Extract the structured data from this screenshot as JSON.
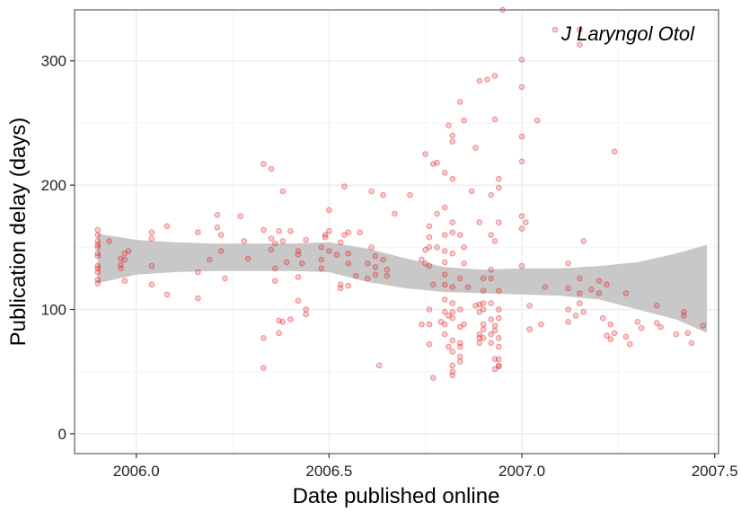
{
  "chart_data": {
    "type": "scatter",
    "title": "",
    "xlabel": "Date published online",
    "ylabel": "Publication delay (days)",
    "xlim": [
      2005.84,
      2007.51
    ],
    "ylim": [
      -16,
      341
    ],
    "x_ticks": [
      2006.0,
      2006.5,
      2007.0,
      2007.5
    ],
    "x_tick_labels": [
      "2006.0",
      "2006.5",
      "2007.0",
      "2007.5"
    ],
    "y_ticks": [
      0,
      100,
      200,
      300
    ],
    "y_tick_labels": [
      "0",
      "100",
      "200",
      "300"
    ],
    "grid": true,
    "legend_position": "top-right",
    "colors": {
      "points": "#e31a1c",
      "band": "#c8c8c8",
      "grid": "#ebebeb",
      "frame": "#7f7f7f"
    },
    "series": [
      {
        "name": "J Laryngol Otol",
        "type": "scatter",
        "points": [
          [
            2005.9,
            164
          ],
          [
            2005.9,
            160
          ],
          [
            2005.9,
            155
          ],
          [
            2005.9,
            152
          ],
          [
            2005.9,
            150
          ],
          [
            2005.9,
            145
          ],
          [
            2005.9,
            143
          ],
          [
            2005.9,
            135
          ],
          [
            2005.9,
            133
          ],
          [
            2005.9,
            130
          ],
          [
            2005.9,
            124
          ],
          [
            2005.9,
            121
          ],
          [
            2005.93,
            155
          ],
          [
            2005.96,
            141
          ],
          [
            2005.96,
            136
          ],
          [
            2005.96,
            133
          ],
          [
            2005.97,
            145
          ],
          [
            2005.97,
            140
          ],
          [
            2005.97,
            123
          ],
          [
            2005.98,
            147
          ],
          [
            2006.04,
            162
          ],
          [
            2006.04,
            157
          ],
          [
            2006.04,
            135
          ],
          [
            2006.04,
            120
          ],
          [
            2006.08,
            167
          ],
          [
            2006.08,
            112
          ],
          [
            2006.16,
            162
          ],
          [
            2006.16,
            130
          ],
          [
            2006.16,
            109
          ],
          [
            2006.19,
            140
          ],
          [
            2006.21,
            176
          ],
          [
            2006.21,
            166
          ],
          [
            2006.22,
            160
          ],
          [
            2006.22,
            147
          ],
          [
            2006.23,
            125
          ],
          [
            2006.27,
            175
          ],
          [
            2006.28,
            155
          ],
          [
            2006.29,
            141
          ],
          [
            2006.33,
            217
          ],
          [
            2006.33,
            164
          ],
          [
            2006.33,
            77
          ],
          [
            2006.33,
            53
          ],
          [
            2006.35,
            213
          ],
          [
            2006.35,
            157
          ],
          [
            2006.35,
            148
          ],
          [
            2006.36,
            153
          ],
          [
            2006.36,
            133
          ],
          [
            2006.36,
            123
          ],
          [
            2006.37,
            163
          ],
          [
            2006.37,
            91
          ],
          [
            2006.37,
            81
          ],
          [
            2006.38,
            195
          ],
          [
            2006.38,
            155
          ],
          [
            2006.38,
            90
          ],
          [
            2006.39,
            138
          ],
          [
            2006.4,
            163
          ],
          [
            2006.4,
            92
          ],
          [
            2006.42,
            147
          ],
          [
            2006.42,
            144
          ],
          [
            2006.42,
            126
          ],
          [
            2006.42,
            107
          ],
          [
            2006.43,
            137
          ],
          [
            2006.44,
            156
          ],
          [
            2006.44,
            100
          ],
          [
            2006.44,
            96
          ],
          [
            2006.48,
            150
          ],
          [
            2006.48,
            140
          ],
          [
            2006.48,
            133
          ],
          [
            2006.49,
            160
          ],
          [
            2006.49,
            158
          ],
          [
            2006.5,
            180
          ],
          [
            2006.5,
            163
          ],
          [
            2006.5,
            147
          ],
          [
            2006.52,
            144
          ],
          [
            2006.53,
            154
          ],
          [
            2006.53,
            120
          ],
          [
            2006.53,
            117
          ],
          [
            2006.54,
            199
          ],
          [
            2006.54,
            160
          ],
          [
            2006.55,
            162
          ],
          [
            2006.55,
            145
          ],
          [
            2006.55,
            137
          ],
          [
            2006.55,
            119
          ],
          [
            2006.57,
            127
          ],
          [
            2006.58,
            162
          ],
          [
            2006.6,
            137
          ],
          [
            2006.6,
            125
          ],
          [
            2006.61,
            195
          ],
          [
            2006.61,
            150
          ],
          [
            2006.62,
            143
          ],
          [
            2006.62,
            134
          ],
          [
            2006.62,
            128
          ],
          [
            2006.63,
            55
          ],
          [
            2006.64,
            192
          ],
          [
            2006.64,
            140
          ],
          [
            2006.65,
            132
          ],
          [
            2006.65,
            127
          ],
          [
            2006.67,
            177
          ],
          [
            2006.71,
            192
          ],
          [
            2006.74,
            140
          ],
          [
            2006.74,
            88
          ],
          [
            2006.75,
            225
          ],
          [
            2006.75,
            148
          ],
          [
            2006.75,
            137
          ],
          [
            2006.76,
            167
          ],
          [
            2006.76,
            158
          ],
          [
            2006.76,
            150
          ],
          [
            2006.76,
            135
          ],
          [
            2006.76,
            100
          ],
          [
            2006.76,
            88
          ],
          [
            2006.76,
            72
          ],
          [
            2006.77,
            217
          ],
          [
            2006.77,
            120
          ],
          [
            2006.77,
            45
          ],
          [
            2006.78,
            218
          ],
          [
            2006.78,
            177
          ],
          [
            2006.78,
            150
          ],
          [
            2006.79,
            90
          ],
          [
            2006.8,
            210
          ],
          [
            2006.8,
            182
          ],
          [
            2006.8,
            160
          ],
          [
            2006.8,
            147
          ],
          [
            2006.8,
            138
          ],
          [
            2006.8,
            128
          ],
          [
            2006.8,
            120
          ],
          [
            2006.8,
            108
          ],
          [
            2006.8,
            98
          ],
          [
            2006.8,
            88
          ],
          [
            2006.8,
            80
          ],
          [
            2006.81,
            248
          ],
          [
            2006.81,
            95
          ],
          [
            2006.81,
            70
          ],
          [
            2006.82,
            240
          ],
          [
            2006.82,
            235
          ],
          [
            2006.82,
            205
          ],
          [
            2006.82,
            170
          ],
          [
            2006.82,
            162
          ],
          [
            2006.82,
            145
          ],
          [
            2006.82,
            118
          ],
          [
            2006.82,
            105
          ],
          [
            2006.82,
            98
          ],
          [
            2006.82,
            93
          ],
          [
            2006.82,
            75
          ],
          [
            2006.82,
            66
          ],
          [
            2006.82,
            55
          ],
          [
            2006.82,
            50
          ],
          [
            2006.82,
            47
          ],
          [
            2006.84,
            267
          ],
          [
            2006.84,
            160
          ],
          [
            2006.84,
            125
          ],
          [
            2006.84,
            100
          ],
          [
            2006.84,
            86
          ],
          [
            2006.84,
            73
          ],
          [
            2006.84,
            70
          ],
          [
            2006.84,
            62
          ],
          [
            2006.84,
            58
          ],
          [
            2006.85,
            252
          ],
          [
            2006.85,
            150
          ],
          [
            2006.85,
            137
          ],
          [
            2006.85,
            88
          ],
          [
            2006.86,
            118
          ],
          [
            2006.87,
            195
          ],
          [
            2006.88,
            230
          ],
          [
            2006.88,
            103
          ],
          [
            2006.89,
            170
          ],
          [
            2006.89,
            104
          ],
          [
            2006.89,
            98
          ],
          [
            2006.89,
            80
          ],
          [
            2006.89,
            77
          ],
          [
            2006.89,
            73
          ],
          [
            2006.89,
            284
          ],
          [
            2006.9,
            125
          ],
          [
            2006.9,
            115
          ],
          [
            2006.9,
            105
          ],
          [
            2006.9,
            100
          ],
          [
            2006.9,
            88
          ],
          [
            2006.9,
            84
          ],
          [
            2006.9,
            77
          ],
          [
            2006.91,
            285
          ],
          [
            2006.92,
            192
          ],
          [
            2006.92,
            160
          ],
          [
            2006.92,
            132
          ],
          [
            2006.92,
            125
          ],
          [
            2006.92,
            105
          ],
          [
            2006.92,
            92
          ],
          [
            2006.92,
            80
          ],
          [
            2006.92,
            73
          ],
          [
            2006.93,
            288
          ],
          [
            2006.93,
            253
          ],
          [
            2006.93,
            155
          ],
          [
            2006.93,
            87
          ],
          [
            2006.93,
            83
          ],
          [
            2006.93,
            60
          ],
          [
            2006.93,
            52
          ],
          [
            2006.94,
            205
          ],
          [
            2006.94,
            198
          ],
          [
            2006.94,
            170
          ],
          [
            2006.94,
            115
          ],
          [
            2006.94,
            100
          ],
          [
            2006.94,
            93
          ],
          [
            2006.94,
            77
          ],
          [
            2006.94,
            70
          ],
          [
            2006.94,
            60
          ],
          [
            2006.94,
            55
          ],
          [
            2006.94,
            54
          ],
          [
            2006.95,
            341
          ],
          [
            2007.0,
            301
          ],
          [
            2007.0,
            279
          ],
          [
            2007.0,
            239
          ],
          [
            2007.0,
            219
          ],
          [
            2007.0,
            175
          ],
          [
            2007.0,
            165
          ],
          [
            2007.0,
            135
          ],
          [
            2007.01,
            170
          ],
          [
            2007.02,
            103
          ],
          [
            2007.02,
            84
          ],
          [
            2007.04,
            252
          ],
          [
            2007.05,
            88
          ],
          [
            2007.06,
            118
          ],
          [
            2007.12,
            137
          ],
          [
            2007.12,
            117
          ],
          [
            2007.12,
            100
          ],
          [
            2007.12,
            90
          ],
          [
            2007.14,
            95
          ],
          [
            2007.15,
            325
          ],
          [
            2007.15,
            313
          ],
          [
            2007.15,
            125
          ],
          [
            2007.15,
            113
          ],
          [
            2007.15,
            105
          ],
          [
            2007.16,
            155
          ],
          [
            2007.16,
            98
          ],
          [
            2007.18,
            116
          ],
          [
            2007.2,
            123
          ],
          [
            2007.2,
            113
          ],
          [
            2007.21,
            93
          ],
          [
            2007.22,
            120
          ],
          [
            2007.22,
            79
          ],
          [
            2007.23,
            76
          ],
          [
            2007.23,
            88
          ],
          [
            2007.24,
            227
          ],
          [
            2007.24,
            81
          ],
          [
            2007.27,
            113
          ],
          [
            2007.27,
            78
          ],
          [
            2007.28,
            72
          ],
          [
            2007.3,
            90
          ],
          [
            2007.31,
            85
          ],
          [
            2007.35,
            103
          ],
          [
            2007.35,
            89
          ],
          [
            2007.36,
            86
          ],
          [
            2007.4,
            80
          ],
          [
            2007.42,
            98
          ],
          [
            2007.42,
            95
          ],
          [
            2007.43,
            81
          ],
          [
            2007.44,
            73
          ],
          [
            2007.47,
            87
          ]
        ]
      },
      {
        "type": "band",
        "x": [
          2005.9,
          2006.0,
          2006.1,
          2006.2,
          2006.3,
          2006.4,
          2006.5,
          2006.6,
          2006.7,
          2006.8,
          2006.9,
          2007.0,
          2007.1,
          2007.2,
          2007.3,
          2007.4,
          2007.48
        ],
        "lower": [
          121,
          128,
          130,
          131,
          131,
          131,
          130,
          122,
          117,
          114,
          113,
          112,
          111,
          108,
          100,
          92,
          81
        ],
        "upper": [
          161,
          156,
          154,
          153,
          153,
          153,
          154,
          149,
          141,
          134,
          132,
          133,
          133,
          135,
          138,
          145,
          152
        ]
      }
    ]
  }
}
